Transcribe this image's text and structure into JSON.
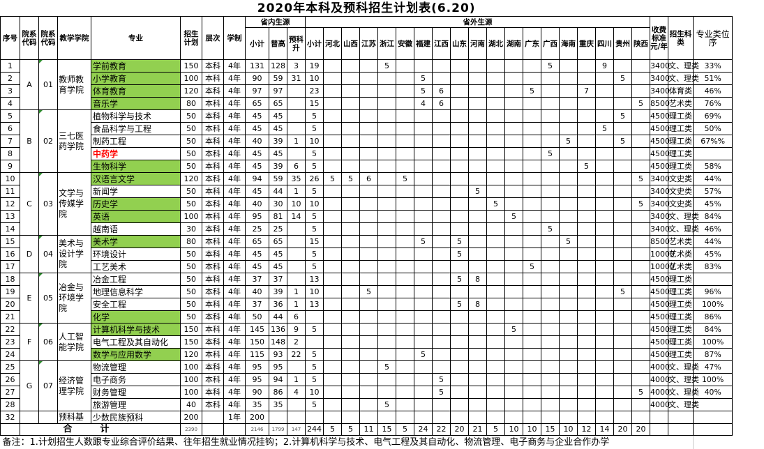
{
  "title": "2020年本科及预科招生计划表(6.20)",
  "headers": {
    "no": "序号",
    "dept_code1": "院系代码",
    "dept_code2": "院系代码",
    "college": "教学学院",
    "major": "专业",
    "plan": "招生计划",
    "level": "层次",
    "years": "学制",
    "in_province": "省内生源",
    "in_total": "小计",
    "in_regular": "普高",
    "in_prep": "预科升",
    "out_province": "省外生源",
    "out_total": "小计",
    "fee": "收费标准元/年",
    "category": "招生科类",
    "rank": "专业类位序"
  },
  "provinces": [
    "河北",
    "山西",
    "江苏",
    "浙江",
    "安徽",
    "福建",
    "江西",
    "山东",
    "河南",
    "湖北",
    "湖南",
    "广东",
    "广西",
    "海南",
    "重庆",
    "四川",
    "贵州",
    "陕西"
  ],
  "colors": {
    "highlight": "#92d050",
    "alert": "#ff0000"
  },
  "groups": [
    {
      "letter": "A",
      "code": "01",
      "college": "教师教育学院",
      "rows": 4
    },
    {
      "letter": "B",
      "code": "02",
      "college": "三七医药学院",
      "rows": 5
    },
    {
      "letter": "C",
      "code": "03",
      "college": "文学与传媒学院",
      "rows": 5
    },
    {
      "letter": "D",
      "code": "04",
      "college": "美术与设计学院",
      "rows": 3
    },
    {
      "letter": "E",
      "code": "05",
      "college": "冶金与环境学院",
      "rows": 4
    },
    {
      "letter": "F",
      "code": "06",
      "college": "人工智能学院",
      "rows": 3
    },
    {
      "letter": "G",
      "code": "07",
      "college": "经济管理学院",
      "rows": 4
    },
    {
      "letter": "",
      "code": "",
      "college": "预科基",
      "rows": 1
    }
  ],
  "rows": [
    {
      "no": "1",
      "major": "学前教育",
      "green": true,
      "plan": "150",
      "level": "本科",
      "years": "4年",
      "in_total": "131",
      "in_regular": "128",
      "in_prep": "3",
      "out_total": "19",
      "out": {
        "浙江": "5",
        "广西": "5",
        "四川": "9"
      },
      "fee": "3400",
      "category": "文、理类",
      "rank": "33%"
    },
    {
      "no": "2",
      "major": "小学教育",
      "green": true,
      "plan": "100",
      "level": "本科",
      "years": "4年",
      "in_total": "90",
      "in_regular": "59",
      "in_prep": "31",
      "out_total": "10",
      "out": {
        "福建": "5",
        "贵州": "5"
      },
      "fee": "3400",
      "category": "文、理类",
      "rank": "51%"
    },
    {
      "no": "3",
      "major": "体育教育",
      "green": true,
      "plan": "120",
      "level": "本科",
      "years": "4年",
      "in_total": "97",
      "in_regular": "97",
      "in_prep": "",
      "out_total": "23",
      "out": {
        "福建": "5",
        "江西": "6",
        "广东": "5",
        "重庆": "7"
      },
      "fee": "3400",
      "category": "体育类",
      "rank": "46%"
    },
    {
      "no": "4",
      "major": "音乐学",
      "green": true,
      "plan": "80",
      "level": "本科",
      "years": "4年",
      "in_total": "65",
      "in_regular": "65",
      "in_prep": "",
      "out_total": "15",
      "out": {
        "福建": "4",
        "江西": "6",
        "陕西": "5"
      },
      "fee": "8500",
      "category": "艺术类",
      "rank": "76%"
    },
    {
      "no": "5",
      "major": "植物科学与技术",
      "plan": "50",
      "level": "本科",
      "years": "4年",
      "in_total": "45",
      "in_regular": "45",
      "in_prep": "",
      "out_total": "5",
      "out": {
        "贵州": "5"
      },
      "fee": "4500",
      "category": "理工类",
      "rank": "69%"
    },
    {
      "no": "6",
      "major": "食品科学与工程",
      "plan": "50",
      "level": "本科",
      "years": "4年",
      "in_total": "45",
      "in_regular": "45",
      "in_prep": "",
      "out_total": "5",
      "out": {
        "四川": "5"
      },
      "fee": "4500",
      "category": "理工类",
      "rank": "50%"
    },
    {
      "no": "7",
      "major": "制药工程",
      "plan": "50",
      "level": "本科",
      "years": "4年",
      "in_total": "40",
      "in_regular": "39",
      "in_prep": "1",
      "out_total": "10",
      "out": {
        "海南": "5",
        "贵州": "5"
      },
      "fee": "4500",
      "category": "理工类",
      "rank": "67%%"
    },
    {
      "no": "8",
      "major": "中药学",
      "red": true,
      "plan": "50",
      "level": "本科",
      "years": "4年",
      "in_total": "45",
      "in_regular": "45",
      "in_prep": "",
      "out_total": "5",
      "out": {
        "广西": "5"
      },
      "fee": "4500",
      "category": "理工类",
      "rank": ""
    },
    {
      "no": "9",
      "major": "生物科学",
      "green": true,
      "plan": "50",
      "level": "本科",
      "years": "4年",
      "in_total": "45",
      "in_regular": "39",
      "in_prep": "6",
      "out_total": "5",
      "out": {
        "重庆": "5"
      },
      "fee": "4500",
      "category": "理工类",
      "rank": "58%"
    },
    {
      "no": "10",
      "major": "汉语言文学",
      "green": true,
      "plan": "120",
      "level": "本科",
      "years": "4年",
      "in_total": "94",
      "in_regular": "59",
      "in_prep": "35",
      "out_total": "26",
      "out": {
        "河北": "5",
        "山西": "5",
        "江苏": "6",
        "安徽": "5",
        "陕西": "5"
      },
      "fee": "3400",
      "category": "文史类",
      "rank": "44%"
    },
    {
      "no": "11",
      "major": "新闻学",
      "plan": "50",
      "level": "本科",
      "years": "4年",
      "in_total": "45",
      "in_regular": "44",
      "in_prep": "1",
      "out_total": "5",
      "out": {
        "河南": "5"
      },
      "fee": "3400",
      "category": "文史类",
      "rank": "57%"
    },
    {
      "no": "12",
      "major": "历史学",
      "green": true,
      "plan": "50",
      "level": "本科",
      "years": "4年",
      "in_total": "40",
      "in_regular": "30",
      "in_prep": "10",
      "out_total": "10",
      "out": {
        "湖北": "5",
        "陕西": "5"
      },
      "fee": "3400",
      "category": "文史类",
      "rank": "45%"
    },
    {
      "no": "13",
      "major": "英语",
      "green": true,
      "plan": "100",
      "level": "本科",
      "years": "4年",
      "in_total": "95",
      "in_regular": "81",
      "in_prep": "14",
      "out_total": "5",
      "out": {
        "湖南": "5"
      },
      "fee": "3400",
      "category": "文、理类",
      "rank": "84%"
    },
    {
      "no": "14",
      "major": "越南语",
      "plan": "30",
      "level": "本科",
      "years": "4年",
      "in_total": "25",
      "in_regular": "25",
      "in_prep": "",
      "out_total": "5",
      "out": {
        "广西": "5"
      },
      "fee": "3400",
      "category": "文、理类",
      "rank": "46%"
    },
    {
      "no": "15",
      "major": "美术学",
      "green": true,
      "plan": "80",
      "level": "本科",
      "years": "4年",
      "in_total": "65",
      "in_regular": "65",
      "in_prep": "",
      "out_total": "15",
      "out": {
        "福建": "5",
        "山东": "5",
        "海南": "5"
      },
      "fee": "8500",
      "category": "艺术类",
      "rank": "44%"
    },
    {
      "no": "16",
      "major": "环境设计",
      "plan": "50",
      "level": "本科",
      "years": "4年",
      "in_total": "45",
      "in_regular": "45",
      "in_prep": "",
      "out_total": "5",
      "out": {
        "山东": "5"
      },
      "fee": "10000",
      "category": "艺术类",
      "rank": "45%"
    },
    {
      "no": "17",
      "major": "工艺美术",
      "plan": "50",
      "level": "本科",
      "years": "4年",
      "in_total": "45",
      "in_regular": "45",
      "in_prep": "",
      "out_total": "5",
      "out": {
        "广东": "5"
      },
      "fee": "10000",
      "category": "艺术类",
      "rank": "83%"
    },
    {
      "no": "18",
      "major": "冶金工程",
      "plan": "50",
      "level": "本科",
      "years": "4年",
      "in_total": "37",
      "in_regular": "37",
      "in_prep": "",
      "out_total": "13",
      "out": {
        "山东": "5",
        "河南": "8"
      },
      "fee": "4500",
      "category": "理工类",
      "rank": ""
    },
    {
      "no": "19",
      "major": "地理信息科学",
      "plan": "50",
      "level": "本科",
      "years": "4年",
      "in_total": "40",
      "in_regular": "39",
      "in_prep": "1",
      "out_total": "10",
      "out": {
        "江苏": "5",
        "贵州": "5"
      },
      "fee": "4500",
      "category": "理工类",
      "rank": "96%"
    },
    {
      "no": "20",
      "major": "安全工程",
      "plan": "50",
      "level": "本科",
      "years": "4年",
      "in_total": "37",
      "in_regular": "36",
      "in_prep": "1",
      "out_total": "13",
      "out": {
        "山东": "5",
        "河南": "8"
      },
      "fee": "4500",
      "category": "理工类",
      "rank": "100%"
    },
    {
      "no": "21",
      "major": "化学",
      "green": true,
      "plan": "50",
      "level": "本科",
      "years": "4年",
      "in_total": "50",
      "in_regular": "44",
      "in_prep": "6",
      "out_total": "",
      "out": {},
      "fee": "4500",
      "category": "理工类",
      "rank": "86%"
    },
    {
      "no": "22",
      "major": "计算机科学与技术",
      "green": true,
      "plan": "150",
      "level": "本科",
      "years": "4年",
      "in_total": "145",
      "in_regular": "136",
      "in_prep": "9",
      "out_total": "5",
      "out": {
        "湖南": "5"
      },
      "fee": "4500",
      "category": "理工类",
      "rank": "84%"
    },
    {
      "no": "23",
      "major": "电气工程及其自动化",
      "plan": "150",
      "level": "本科",
      "years": "4年",
      "in_total": "150",
      "in_regular": "148",
      "in_prep": "2",
      "out_total": "",
      "out": {},
      "fee": "4500",
      "category": "理工类",
      "rank": "100%"
    },
    {
      "no": "24",
      "major": "数学与应用数学",
      "green": true,
      "plan": "120",
      "level": "本科",
      "years": "4年",
      "in_total": "115",
      "in_regular": "93",
      "in_prep": "22",
      "out_total": "5",
      "out": {
        "福建": "5"
      },
      "fee": "4500",
      "category": "理工类",
      "rank": "87%"
    },
    {
      "no": "25",
      "major": "物流管理",
      "plan": "100",
      "level": "本科",
      "years": "4年",
      "in_total": "95",
      "in_regular": "95",
      "in_prep": "",
      "out_total": "5",
      "out": {
        "浙江": "5"
      },
      "fee": "4000",
      "category": "文、理类",
      "rank": "47%"
    },
    {
      "no": "26",
      "major": "电子商务",
      "plan": "100",
      "level": "本科",
      "years": "4年",
      "in_total": "95",
      "in_regular": "94",
      "in_prep": "1",
      "out_total": "5",
      "out": {
        "江西": "5"
      },
      "fee": "4000",
      "category": "文、理类",
      "rank": "100%"
    },
    {
      "no": "27",
      "major": "财务管理",
      "plan": "100",
      "level": "本科",
      "years": "4年",
      "in_total": "90",
      "in_regular": "86",
      "in_prep": "4",
      "out_total": "10",
      "out": {
        "江西": "5",
        "陕西": "5"
      },
      "fee": "4000",
      "category": "文、理类",
      "rank": "40%"
    },
    {
      "no": "28",
      "major": "旅游管理",
      "plan": "40",
      "level": "本科",
      "years": "4年",
      "in_total": "35",
      "in_regular": "35",
      "in_prep": "",
      "out_total": "5",
      "out": {
        "浙江": "5"
      },
      "fee": "4000",
      "category": "文、理类",
      "rank": ""
    },
    {
      "no": "32",
      "major": "少数民族预科",
      "plan": "200",
      "level": "",
      "years": "1年",
      "in_total": "200",
      "in_regular": "",
      "in_prep": "",
      "out_total": "",
      "out": {},
      "fee": "",
      "category": "",
      "rank": ""
    }
  ],
  "total": {
    "label": "合计",
    "plan": "2390",
    "in_total": "2146",
    "in_regular": "1799",
    "in_prep": "147",
    "out_total": "244",
    "out": [
      "5",
      "5",
      "11",
      "15",
      "5",
      "24",
      "22",
      "20",
      "21",
      "5",
      "10",
      "10",
      "15",
      "10",
      "12",
      "14",
      "20",
      "20"
    ]
  },
  "note": "备注：1.计划招生人数跟专业综合评价结果、往年招生就业情况挂钩；2.计算机科学与技术、电气工程及其自动化、物流管理、电子商务与企业合作办学"
}
